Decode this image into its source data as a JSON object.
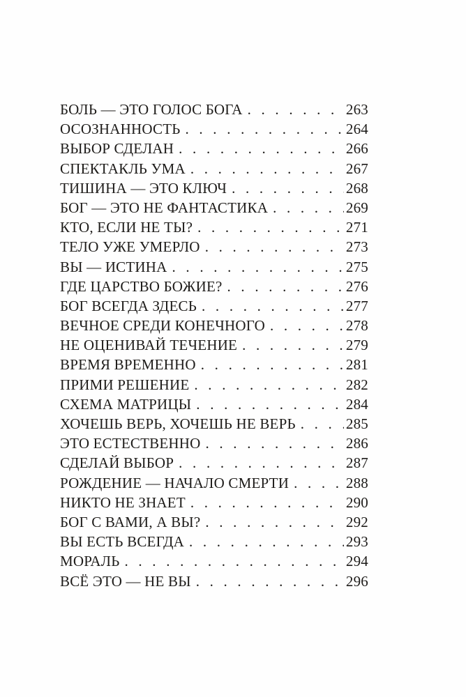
{
  "page": {
    "background_color": "#fefefe",
    "text_color": "#1e1c1a",
    "kind": "book table of contents page"
  },
  "toc": {
    "entries": [
      {
        "title": "БОЛЬ — ЭТО ГОЛОС БОГА",
        "page": "263"
      },
      {
        "title": "ОСОЗНАННОСТЬ",
        "page": "264"
      },
      {
        "title": "ВЫБОР СДЕЛАН",
        "page": "266"
      },
      {
        "title": "СПЕКТАКЛЬ УМА",
        "page": "267"
      },
      {
        "title": "ТИШИНА — ЭТО КЛЮЧ",
        "page": "268"
      },
      {
        "title": "БОГ — ЭТО НЕ ФАНТАСТИКА",
        "page": "269"
      },
      {
        "title": "КТО, ЕСЛИ НЕ ТЫ?",
        "page": "271"
      },
      {
        "title": "ТЕЛО УЖЕ УМЕРЛО",
        "page": "273"
      },
      {
        "title": "ВЫ — ИСТИНА",
        "page": "275"
      },
      {
        "title": "ГДЕ ЦАРСТВО БОЖИЕ?",
        "page": "276"
      },
      {
        "title": "БОГ ВСЕГДА ЗДЕСЬ",
        "page": "277"
      },
      {
        "title": "ВЕЧНОЕ СРЕДИ КОНЕЧНОГО",
        "page": "278"
      },
      {
        "title": "НЕ ОЦЕНИВАЙ ТЕЧЕНИЕ",
        "page": "279"
      },
      {
        "title": "ВРЕМЯ ВРЕМЕННО",
        "page": "281"
      },
      {
        "title": "ПРИМИ РЕШЕНИЕ",
        "page": "282"
      },
      {
        "title": "СХЕМА МАТРИЦЫ",
        "page": "284"
      },
      {
        "title": "ХОЧЕШЬ ВЕРЬ, ХОЧЕШЬ НЕ ВЕРЬ",
        "page": "285"
      },
      {
        "title": "ЭТО ЕСТЕСТВЕННО",
        "page": "286"
      },
      {
        "title": "СДЕЛАЙ ВЫБОР",
        "page": "287"
      },
      {
        "title": "РОЖДЕНИЕ — НАЧАЛО СМЕРТИ",
        "page": "288"
      },
      {
        "title": "НИКТО НЕ ЗНАЕТ",
        "page": "290"
      },
      {
        "title": "БОГ С ВАМИ, А ВЫ?",
        "page": "292"
      },
      {
        "title": "ВЫ ЕСТЬ ВСЕГДА",
        "page": "293"
      },
      {
        "title": "МОРАЛЬ",
        "page": "294"
      },
      {
        "title": "ВСЁ ЭТО — НЕ ВЫ",
        "page": "296"
      }
    ]
  }
}
